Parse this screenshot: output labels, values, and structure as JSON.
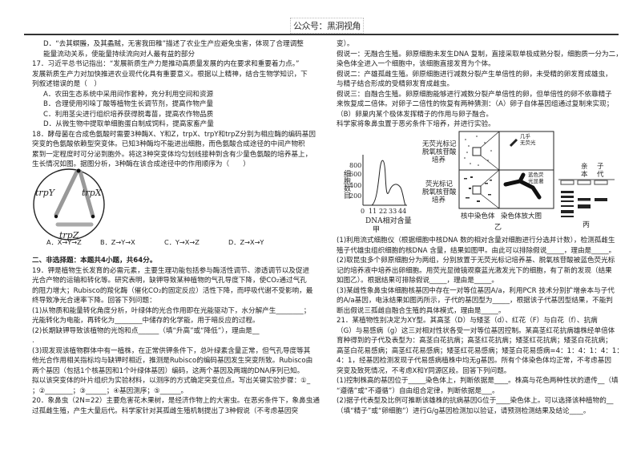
{
  "header": {
    "watermark": "公众号：黑洞视角"
  },
  "left": {
    "lines1": [
      "D．“去其螟螣，及其蟊贼，无害我田稚”描述了农业生产应避免虫害，体现了合理调整",
      "能量流动关系，使能量持续流向对人最有益的部分",
      "17．习近平总书记指出：“发展新质生产力是推动高质量发展的内在要求和重要着力点。”",
      "发展新质生产力对加快推进农业现代化具有重要意义。根据以上精神，结合生物学知识，下",
      "列叙述错误的是（　）",
      "A．农田生态系统中采用间作套种，充分利用空间和资源",
      "B．合理使用吲哚丁酸等植物生长调节剂，提高作物产量",
      "C．利用茎尖进行组织培养获得脱毒苗，提高农作物品质",
      "D．从微生物中提取单细胞蛋白制成饲料，提高家畜产量",
      "18．酵母菌在合成色氨酸时需要3种酶X、Y和Z，trpX、trpY和trpZ分别为相应酶的编码基因",
      "突变的色氨酸依赖型突变体。已知3种酶均不能进出细胞，而色氨酸合成途径的中间产物积",
      "累到一定程度时可分泌到胞外。将这3种突变体均匀划线接种到含有少量色氨酸的培养基上，",
      "生长情况如图。据图分析，3种酶在该合成途径中的作用顺序为（　　）"
    ],
    "dish_labels": {
      "y": "trpY",
      "x": "trpX",
      "z": "trpZ"
    },
    "options": [
      "A．X→Y→Z",
      "B．Z→Y→X",
      "C．Y→X→Z",
      "D．Z→X→Y"
    ],
    "lines2": [
      "二、非选择题：本题共4小题，共64分。",
      "19．钾是植物生长发育的必需元素，主要生理功能包括参与酶活性调节、渗透调节以及促进",
      "光合产物的运输和转化等。研究表明，缺钾导致某种植物的气孔导度下降，使CO₂通过气孔",
      "的阻力增大；Rubisco的羧化酶（催化CO₂的固定反应）活性下降，而呼吸代谢不受影响，最",
      "终导致净光合速率下降。回答下列问题：",
      "(1)从物质和能量转化角度分析，叶绿体的光合作用即在光能驱动下，水分解产生________；",
      "光能转化为电能，再转化为________中储存的化学能，用于暗反应的过程。",
      "(2)长期缺钾导致该植物的光饱和点______（填“升高”或“降低”），理由是__",
      ".",
      "(3)现发现该植物群体中有一植株，在正常供钾条件下，总叶绿素含量正常，但气孔导度等其",
      "他光合作用相关指标均与缺钾时相近，推测是Rubisco的编码基因发生突变所致。Rubisco由",
      "两个基因（包括1个核基因和1个叶绿体基因）编码，这两个基因及两端的DNA序列已知。",
      "拟以该突变体的叶片组织为实验材料，以测序的方式确定突变位点。写出关键实验步骤：①_",
      "；②________；③______；④基因测序；⑤______。",
      "20．象鼻虫（2N=22）主要危害花木果树，是经济作物上的大害虫。在恶劣条件下，象鼻虫通",
      "过孤雌生殖，产生大量后代。科学家针对其孤雌生殖机制提出了3种假说（不考虑基因突"
    ]
  },
  "right": {
    "lines1": [
      "变）。",
      "假说一：无融合生殖。卵原细胞未发生DNA 复制，直接采取单极成熟分裂，细胞质一分为二，",
      "染色体全进入一个细胞中，该细胞直接发育为个体。",
      "假说二：产雄孤雌生殖。卵原细胞进行减数分裂产生单倍性的卵，未受精的卵发育成雄虫，",
      "与精子结合形成的受精卵发育成雌虫。",
      "假说三：自融合生殖。卵原细胞能够进行减数分裂产单倍性的卵，但单倍性的卵不依靠精子",
      "来恢复成二倍体。对卵子二倍性的恢复有两种猜测：（A）卵子自体基因组通过复制来实现；",
      "（B）卵巢内某个极体发挥精子的作用与卵子融合。",
      "科学家将象鼻虫置于恶劣条件下培养，并进行实验。"
    ],
    "fig_jia": {
      "caption": "甲",
      "ylabel": "细胞数目",
      "xlabel": "DNA相对含量",
      "yticks": [
        "800",
        "600",
        "400",
        "200"
      ],
      "xticks": [
        "0",
        "11",
        "22",
        "33",
        "44"
      ]
    },
    "fig_yi": {
      "caption": "乙",
      "row1_label": [
        "无荧光标记",
        "脱氧核苷酸",
        "培养"
      ],
      "row2_label": [
        "荧光标记",
        "脱氧核苷酸",
        "培养"
      ],
      "col1_label": "核中染色体",
      "col2_label": "染色体放大图",
      "note1": [
        "几乎",
        "无荧光"
      ],
      "note2": [
        "蓝色荧",
        "光显著"
      ]
    },
    "fig_bing": {
      "caption": "丙",
      "lane_parent": [
        "亲",
        "本"
      ],
      "lane_child": [
        "子",
        "代"
      ]
    },
    "lines2": [
      "(1)利用流式细胞仪（根据细胞中核DNA 数的相对含量对细胞进行分选并计数），检测孤雌生",
      "殖子代雄虫组织细胞的核DNA 含量，结果如图甲。由此可以排除假说_____，理由是_____。",
      "(2)取昆虫多个卵原细胞分为两组，分别放置于无荧光标记培养基、脱氧核苷酸被蓝色荧光标",
      "记的培养液中培养出卵细胞。用荧光显微镜观察蓝光激发光下的细胞，有了新的发现（结果",
      "如图乙）。根据结果可排除假说_____，理由是_____。",
      "(3)某雌性象鼻虫体细胞核基因中存在一对等位基因A/a，利用PCR 技术分别扩增亲本与子代",
      "的A/a基因，电泳结果如图丙所示，子代的基因型为_____，根据该子代基因型结果，不能判",
      "断出假说三孤雌自融合生殖的具体模式，理由是_____。",
      "21．某植物性别决定为XY型。其高茎（D）与矮茎（d）、红花（F）与白花（f）、抗病",
      "（G）与易感病（g）这三对相对性状各受一对等位基因控制。某高茎红花抗病雄株经单倍体",
      "育种得到的子代及表型为：高茎白花抗病；高茎红花抗病；矮茎红花抗病；矮茎白花抗病；",
      "高茎白花易感病；高茎红花易感病；矮茎红花易感病；矮茎白花易感病=4：1：4：1：4：1：",
      "4：1，经基因检测发现子代易感病植株中均无g基因。所有个体染色体均正常，不考虑基因",
      "突变及致死情况，不考虑X和Y同源区段。回答下列问题。",
      "(1)控制株高的基因位于_____染色体上，判断依据是____。株高与花色两种性状的遗传__（填",
      "“遵循”或“不遵循”）自由组合定律，判断依据是___。",
      "(2)据子代表型及比例可推断该雄株的抗病基因G位于____染色体上。可以选择该种植物的__",
      "（填“精子”或“卵细胞”）进行G/g基因检测加以验证，请预测检测结果及结论____。"
    ]
  }
}
